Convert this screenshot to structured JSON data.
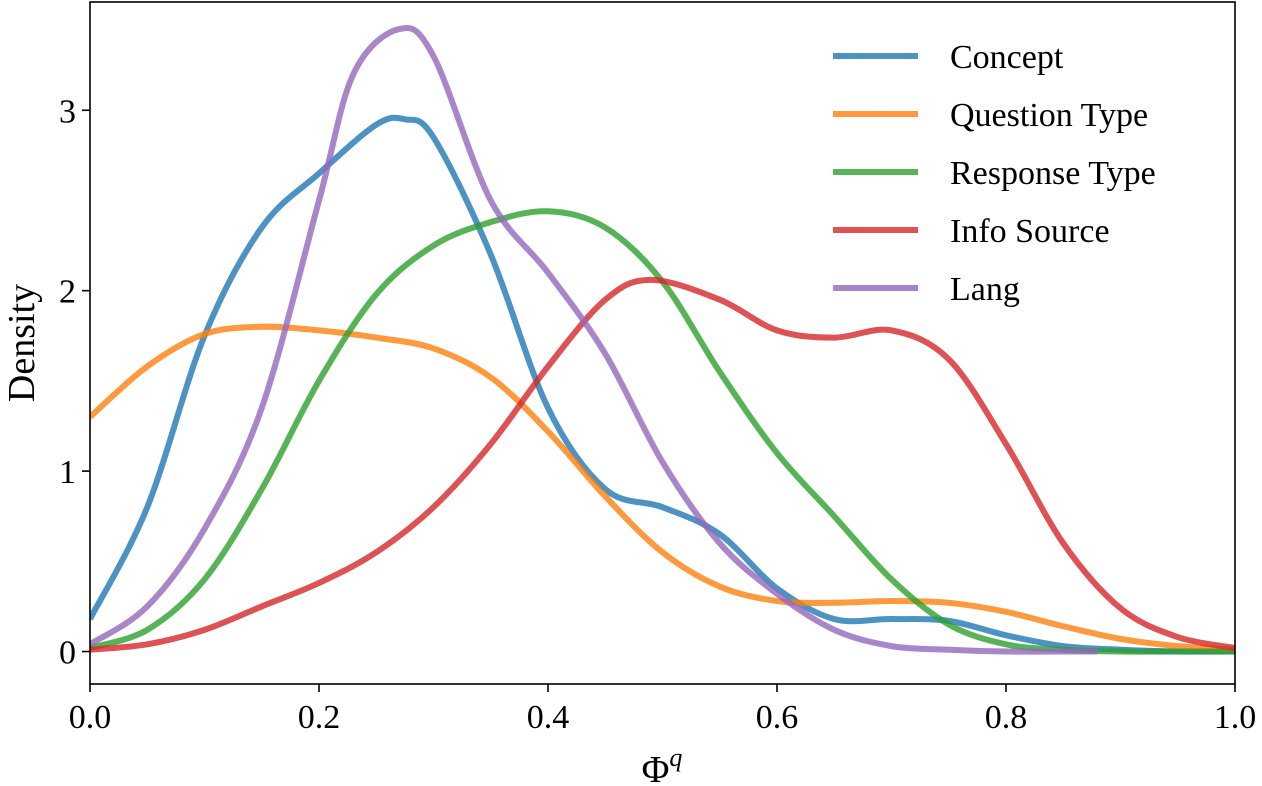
{
  "chart_data": {
    "type": "line",
    "title": "",
    "xlabel": "Φ",
    "xlabel_superscript": "q",
    "ylabel": "Density",
    "xlim": [
      0.0,
      1.0
    ],
    "ylim": [
      -0.18,
      3.6
    ],
    "xticks": [
      0.0,
      0.2,
      0.4,
      0.6,
      0.8,
      1.0
    ],
    "xtick_labels": [
      "0.0",
      "0.2",
      "0.4",
      "0.6",
      "0.8",
      "1.0"
    ],
    "yticks": [
      0,
      1,
      2,
      3
    ],
    "ytick_labels": [
      "0",
      "1",
      "2",
      "3"
    ],
    "grid": false,
    "legend_position": "top-right",
    "series": [
      {
        "name": "Concept",
        "color": "#1f77b4",
        "x": [
          0.0,
          0.05,
          0.1,
          0.15,
          0.2,
          0.25,
          0.275,
          0.3,
          0.35,
          0.4,
          0.45,
          0.5,
          0.55,
          0.6,
          0.65,
          0.7,
          0.75,
          0.8,
          0.85,
          0.9,
          0.95,
          1.0
        ],
        "y": [
          0.18,
          0.8,
          1.75,
          2.35,
          2.65,
          2.92,
          2.95,
          2.85,
          2.2,
          1.35,
          0.9,
          0.8,
          0.65,
          0.35,
          0.18,
          0.18,
          0.17,
          0.09,
          0.03,
          0.01,
          0.0,
          0.0
        ]
      },
      {
        "name": "Question Type",
        "color": "#ff7f0e",
        "x": [
          0.0,
          0.05,
          0.1,
          0.15,
          0.2,
          0.25,
          0.3,
          0.35,
          0.4,
          0.45,
          0.5,
          0.55,
          0.6,
          0.65,
          0.7,
          0.75,
          0.8,
          0.85,
          0.9,
          0.95,
          1.0
        ],
        "y": [
          1.3,
          1.58,
          1.76,
          1.8,
          1.78,
          1.74,
          1.68,
          1.52,
          1.22,
          0.86,
          0.55,
          0.36,
          0.28,
          0.27,
          0.28,
          0.27,
          0.22,
          0.14,
          0.07,
          0.03,
          0.01
        ]
      },
      {
        "name": "Response Type",
        "color": "#2ca02c",
        "x": [
          0.0,
          0.05,
          0.1,
          0.15,
          0.2,
          0.25,
          0.3,
          0.35,
          0.4,
          0.45,
          0.5,
          0.55,
          0.6,
          0.65,
          0.7,
          0.75,
          0.8,
          0.85,
          0.9,
          0.95,
          1.0
        ],
        "y": [
          0.02,
          0.12,
          0.4,
          0.9,
          1.5,
          1.98,
          2.25,
          2.38,
          2.44,
          2.35,
          2.05,
          1.55,
          1.1,
          0.75,
          0.4,
          0.15,
          0.04,
          0.01,
          0.0,
          0.0,
          0.0
        ]
      },
      {
        "name": "Info Source",
        "color": "#d62728",
        "x": [
          0.0,
          0.05,
          0.1,
          0.15,
          0.2,
          0.25,
          0.3,
          0.35,
          0.4,
          0.45,
          0.49,
          0.55,
          0.6,
          0.65,
          0.7,
          0.75,
          0.8,
          0.85,
          0.9,
          0.95,
          1.0
        ],
        "y": [
          0.01,
          0.04,
          0.12,
          0.25,
          0.38,
          0.55,
          0.8,
          1.15,
          1.58,
          1.95,
          2.06,
          1.95,
          1.78,
          1.74,
          1.78,
          1.62,
          1.15,
          0.6,
          0.24,
          0.08,
          0.02
        ]
      },
      {
        "name": "Lang",
        "color": "#9467bd",
        "x": [
          0.0,
          0.05,
          0.1,
          0.15,
          0.2,
          0.23,
          0.27,
          0.3,
          0.35,
          0.4,
          0.45,
          0.5,
          0.55,
          0.6,
          0.65,
          0.7,
          0.75,
          0.8,
          0.85,
          0.88
        ],
        "y": [
          0.04,
          0.25,
          0.68,
          1.35,
          2.5,
          3.2,
          3.45,
          3.3,
          2.5,
          2.1,
          1.65,
          1.05,
          0.6,
          0.32,
          0.12,
          0.03,
          0.01,
          0.0,
          0.0,
          0.0
        ]
      }
    ]
  }
}
